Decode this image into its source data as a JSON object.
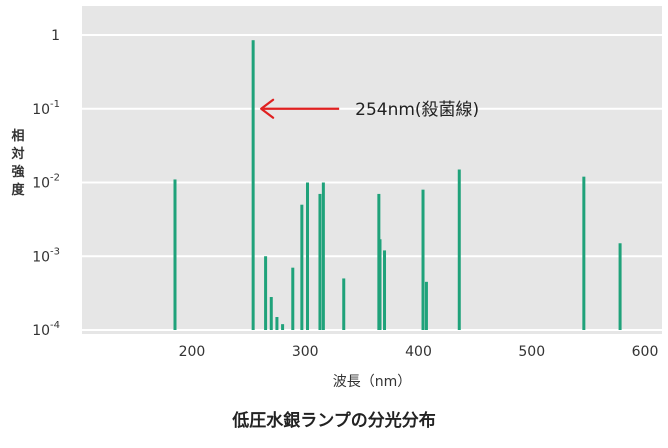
{
  "chart_data": {
    "type": "bar",
    "title": "低圧水銀ランプの分光分布",
    "xlabel": "波長（nm）",
    "ylabel": "相対強度",
    "xlim": [
      110,
      610
    ],
    "xticks": [
      200,
      300,
      400,
      500,
      600
    ],
    "ylim": [
      0.0001,
      1
    ],
    "yscale": "log",
    "yticks": [
      {
        "value": 1,
        "label": "1"
      },
      {
        "value": 0.1,
        "base": "10",
        "exp": "-1"
      },
      {
        "value": 0.01,
        "base": "10",
        "exp": "-2"
      },
      {
        "value": 0.001,
        "base": "10",
        "exp": "-3"
      },
      {
        "value": 0.0001,
        "base": "10",
        "exp": "-4"
      }
    ],
    "grid": true,
    "bar_color": "#1fa27a",
    "background_color": "#e6e6e6",
    "series": [
      {
        "x": [
          185,
          254,
          265,
          270,
          275,
          280,
          289,
          297,
          302,
          313,
          316,
          334,
          365,
          366,
          370,
          404,
          407,
          436,
          546,
          578
        ],
        "y": [
          0.011,
          0.85,
          0.001,
          0.00028,
          0.00015,
          0.00012,
          0.0007,
          0.005,
          0.01,
          0.007,
          0.01,
          0.0005,
          0.007,
          0.0017,
          0.0012,
          0.008,
          0.00045,
          0.015,
          0.012,
          0.0015
        ]
      }
    ],
    "annotations": [
      {
        "text": "254nm(殺菌線)",
        "x": 254,
        "y": 0.1,
        "color": "#e02020"
      }
    ]
  }
}
